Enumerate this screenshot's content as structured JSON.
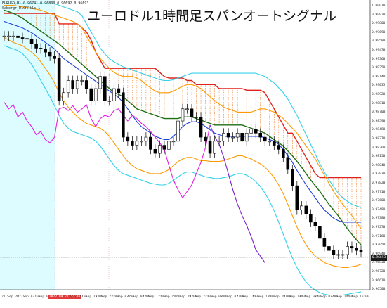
{
  "window": {
    "title": "ユーロドル1時間足スパンオートシグナル",
    "symbol_line": "EURUSD,H1  0.96741 0.96800 0.96692 0.96693",
    "indicator_line": "Sabergr_D1GRPtls 1"
  },
  "colors": {
    "background": "#ffffff",
    "cyan_zone": "#dcfcff",
    "candle_bull": "#ffffff",
    "candle_bear": "#000000",
    "span_red": "#e0201c",
    "span_green": "#1e6e14",
    "bb_blue": "#1f3fd6",
    "bb_orange": "#ff9900",
    "bb_cyan": "#33d0e8",
    "lagging_magenta": "#e020e0",
    "lagging_purple": "#7a1ec8",
    "cloud_hatch": "#e87a2a"
  },
  "price_axis": {
    "labels": [
      "1.00010",
      "0.99920",
      "0.99800",
      "0.99690",
      "0.99580",
      "0.99470",
      "0.99360",
      "0.99250",
      "0.99140",
      "0.99035",
      "0.98920",
      "0.98810",
      "0.98700",
      "0.98590",
      "0.98480",
      "0.98370",
      "0.98260",
      "0.98150",
      "0.98040",
      "0.97930",
      "0.97820",
      "0.97710",
      "0.97600",
      "0.97490",
      "0.97380",
      "0.97270",
      "0.97160",
      "0.97050",
      "0.96940",
      "0.96830",
      "0.96720",
      "0.96610",
      "0.96500"
    ],
    "current_price": "0.96693"
  },
  "time_axis": {
    "labels": [
      "21 Sep 2022",
      "21 Sep 03:00",
      "21 Sep 07:00",
      "2022.09.21 14:00",
      "21 Sep 15:00",
      "21 Sep 19:00",
      "21 Sep 23:00",
      "22 Sep 03:00",
      "22 Sep 07:00",
      "22 Sep 11:00",
      "22 Sep 15:00",
      "22 Sep 19:00",
      "22 Sep 23:00",
      "23 Sep 03:00",
      "23 Sep 07:00",
      "23 Sep 11:00",
      "23 Sep 15:00",
      "23 Sep 19:00",
      "23 Sep 23:00",
      "24 Sep 03:00",
      "24 Sep 07:00",
      "24 Sep 11:00",
      "24 Sep 15:00"
    ],
    "highlighted_label_index": 3
  },
  "chart_data": {
    "type": "line",
    "title": "ユーロドル1時間足スパンオートシグナル",
    "xlabel": "",
    "ylabel": "",
    "ylim": [
      0.965,
      1.0001
    ],
    "x_ticks": [
      "21 Sep 2022",
      "21 Sep 03:00",
      "21 Sep 07:00",
      "2022.09.21 14:00",
      "21 Sep 15:00",
      "21 Sep 19:00",
      "21 Sep 23:00",
      "22 Sep 03:00",
      "22 Sep 07:00",
      "22 Sep 11:00",
      "22 Sep 15:00",
      "22 Sep 19:00",
      "22 Sep 23:00",
      "23 Sep 03:00",
      "23 Sep 07:00",
      "23 Sep 11:00",
      "23 Sep 15:00",
      "23 Sep 19:00",
      "23 Sep 23:00",
      "24 Sep 03:00",
      "24 Sep 07:00",
      "24 Sep 11:00",
      "24 Sep 15:00"
    ],
    "candles_close": [
      0.996,
      0.996,
      0.996,
      0.9958,
      0.9957,
      0.9956,
      0.995,
      0.9945,
      0.9944,
      0.994,
      0.9935,
      0.9932,
      0.988,
      0.989,
      0.9905,
      0.9895,
      0.9905,
      0.9905,
      0.9895,
      0.988,
      0.9895,
      0.991,
      0.988,
      0.988,
      0.9895,
      0.989,
      0.9835,
      0.983,
      0.9825,
      0.983,
      0.983,
      0.9835,
      0.982,
      0.9815,
      0.9825,
      0.982,
      0.983,
      0.983,
      0.9855,
      0.987,
      0.987,
      0.986,
      0.986,
      0.9835,
      0.983,
      0.9815,
      0.983,
      0.983,
      0.984,
      0.9835,
      0.9835,
      0.984,
      0.983,
      0.984,
      0.9845,
      0.984,
      0.9835,
      0.983,
      0.983,
      0.9825,
      0.982,
      0.981,
      0.9795,
      0.9775,
      0.9745,
      0.975,
      0.974,
      0.973,
      0.9725,
      0.971,
      0.97,
      0.9695,
      0.969,
      0.969,
      0.969,
      0.97,
      0.9698,
      0.9695,
      0.9693
    ],
    "series": [
      {
        "name": "",
        "color": "#e0201c",
        "values": [
          0.9988,
          0.9988,
          0.9988,
          0.9988,
          0.9988,
          0.9988,
          0.9988,
          0.9988,
          0.9988,
          0.9988,
          0.9988,
          0.9988,
          0.9975,
          0.9975,
          0.9975,
          0.9975,
          0.9975,
          0.997,
          0.9965,
          0.9955,
          0.994,
          0.993,
          0.992,
          0.992,
          0.992,
          0.992,
          0.992,
          0.992,
          0.992,
          0.992,
          0.992,
          0.992,
          0.992,
          0.992,
          0.9915,
          0.991,
          0.9908,
          0.9908,
          0.9908,
          0.9908,
          0.9905,
          0.9905,
          0.99,
          0.99,
          0.99,
          0.99,
          0.99,
          0.9895,
          0.9895,
          0.9895,
          0.9895,
          0.9895,
          0.9895,
          0.9893,
          0.9893,
          0.9893,
          0.9893,
          0.989,
          0.988,
          0.987,
          0.986,
          0.985,
          0.984,
          0.984,
          0.983,
          0.982,
          0.981,
          0.98,
          0.979,
          0.9785,
          0.9785,
          0.9785,
          0.9785,
          0.9785,
          0.9785,
          0.9785,
          0.9785,
          0.9785,
          0.9785
        ]
      },
      {
        "name": "",
        "color": "#1e6e14",
        "values": [
          0.9992,
          0.999,
          0.9988,
          0.9985,
          0.9982,
          0.9978,
          0.9974,
          0.997,
          0.9966,
          0.9962,
          0.9958,
          0.9954,
          0.995,
          0.9945,
          0.994,
          0.9935,
          0.993,
          0.9925,
          0.992,
          0.9915,
          0.991,
          0.9905,
          0.99,
          0.9895,
          0.989,
          0.9888,
          0.9885,
          0.988,
          0.9875,
          0.987,
          0.9868,
          0.9866,
          0.9864,
          0.9862,
          0.986,
          0.9858,
          0.9858,
          0.9858,
          0.9858,
          0.986,
          0.986,
          0.986,
          0.9858,
          0.9856,
          0.9854,
          0.9852,
          0.985,
          0.985,
          0.985,
          0.985,
          0.985,
          0.985,
          0.985,
          0.9848,
          0.9846,
          0.9844,
          0.9842,
          0.984,
          0.9836,
          0.9832,
          0.9828,
          0.9824,
          0.9818,
          0.9812,
          0.9805,
          0.9798,
          0.979,
          0.9782,
          0.9775,
          0.9768,
          0.976,
          0.9752,
          0.9745,
          0.9738,
          0.973,
          0.9722,
          0.9715,
          0.9708,
          0.9702
        ]
      },
      {
        "name": "",
        "color": "#1f3fd6",
        "values": [
          0.9978,
          0.9976,
          0.9974,
          0.9972,
          0.997,
          0.9967,
          0.9964,
          0.996,
          0.9956,
          0.9952,
          0.9948,
          0.9944,
          0.9938,
          0.9932,
          0.9928,
          0.9924,
          0.992,
          0.9916,
          0.9912,
          0.9908,
          0.9904,
          0.99,
          0.9896,
          0.9892,
          0.9888,
          0.9884,
          0.9878,
          0.987,
          0.9862,
          0.9854,
          0.9848,
          0.9844,
          0.984,
          0.9836,
          0.9834,
          0.9832,
          0.9832,
          0.9836,
          0.9842,
          0.9848,
          0.9852,
          0.9854,
          0.9854,
          0.9852,
          0.9848,
          0.9844,
          0.984,
          0.9838,
          0.9836,
          0.9836,
          0.9836,
          0.9836,
          0.9836,
          0.9836,
          0.9836,
          0.9836,
          0.9836,
          0.9834,
          0.9832,
          0.983,
          0.9826,
          0.982,
          0.9812,
          0.9804,
          0.9794,
          0.9785,
          0.9776,
          0.9768,
          0.976,
          0.9752,
          0.9745,
          0.974,
          0.9735,
          0.9732,
          0.973,
          0.973,
          0.973,
          0.973,
          0.973
        ]
      },
      {
        "name": "",
        "color": "#ff9900",
        "values": [
          0.9998,
          0.9998,
          0.9998,
          0.9997,
          0.9996,
          0.9995,
          0.9994,
          0.9993,
          0.9992,
          0.999,
          0.9988,
          0.9986,
          0.9984,
          0.9982,
          0.998,
          0.9978,
          0.9975,
          0.997,
          0.996,
          0.995,
          0.994,
          0.9932,
          0.9926,
          0.992,
          0.9915,
          0.9912,
          0.991,
          0.991,
          0.991,
          0.9908,
          0.9905,
          0.99,
          0.9896,
          0.9892,
          0.989,
          0.989,
          0.989,
          0.9892,
          0.9895,
          0.9898,
          0.99,
          0.99,
          0.9898,
          0.9895,
          0.989,
          0.9885,
          0.988,
          0.9876,
          0.9872,
          0.987,
          0.9868,
          0.9866,
          0.9866,
          0.9866,
          0.9866,
          0.9868,
          0.987,
          0.987,
          0.9868,
          0.9866,
          0.9862,
          0.9858,
          0.9852,
          0.9846,
          0.984,
          0.9832,
          0.9824,
          0.9816,
          0.9808,
          0.9798,
          0.9788,
          0.9778,
          0.9768,
          0.976,
          0.9752,
          0.9745,
          0.9738,
          0.973,
          0.9722
        ]
      },
      {
        "name": "",
        "color": "#ff9900",
        "values": [
          0.9958,
          0.9955,
          0.9952,
          0.995,
          0.9948,
          0.9944,
          0.994,
          0.9935,
          0.9928,
          0.992,
          0.9912,
          0.9902,
          0.989,
          0.988,
          0.9872,
          0.9866,
          0.986,
          0.9856,
          0.9852,
          0.985,
          0.9848,
          0.9846,
          0.9842,
          0.9836,
          0.9828,
          0.982,
          0.9812,
          0.9805,
          0.98,
          0.9796,
          0.9794,
          0.9792,
          0.979,
          0.979,
          0.979,
          0.9792,
          0.9795,
          0.98,
          0.9805,
          0.9808,
          0.981,
          0.981,
          0.9808,
          0.9806,
          0.9806,
          0.9805,
          0.9805,
          0.9805,
          0.9806,
          0.9808,
          0.981,
          0.9812,
          0.9812,
          0.981,
          0.9808,
          0.9805,
          0.9802,
          0.9798,
          0.9792,
          0.9785,
          0.9776,
          0.9765,
          0.9752,
          0.9738,
          0.9724,
          0.9712,
          0.9702,
          0.9694,
          0.9688,
          0.9684,
          0.968,
          0.9678,
          0.9676,
          0.9675,
          0.9674,
          0.9674,
          0.9675,
          0.9676,
          0.9678
        ]
      },
      {
        "name": "",
        "color": "#33d0e8",
        "values": [
          1.0,
          1.0,
          1.0,
          1.0,
          1.0,
          1.0,
          1.0,
          1.0,
          1.0,
          1.0,
          1.0,
          1.0,
          0.9998,
          0.9996,
          0.9994,
          0.9992,
          0.999,
          0.9985,
          0.9975,
          0.9965,
          0.9955,
          0.9945,
          0.9938,
          0.9932,
          0.9928,
          0.9925,
          0.9922,
          0.992,
          0.9918,
          0.9916,
          0.9914,
          0.9912,
          0.991,
          0.9908,
          0.9906,
          0.9905,
          0.9905,
          0.9906,
          0.9908,
          0.991,
          0.9912,
          0.9914,
          0.9914,
          0.9914,
          0.9914,
          0.9914,
          0.9914,
          0.9914,
          0.9914,
          0.9914,
          0.9914,
          0.9914,
          0.9914,
          0.9914,
          0.9914,
          0.9914,
          0.9912,
          0.991,
          0.9906,
          0.9902,
          0.9896,
          0.989,
          0.9882,
          0.9872,
          0.9862,
          0.985,
          0.9838,
          0.9826,
          0.9814,
          0.9802,
          0.9792,
          0.9782,
          0.9774,
          0.9766,
          0.976,
          0.9756,
          0.9752,
          0.975,
          0.9748
        ]
      },
      {
        "name": "",
        "color": "#33d0e8",
        "values": [
          0.9948,
          0.9946,
          0.9944,
          0.9942,
          0.9938,
          0.9932,
          0.9925,
          0.9915,
          0.9905,
          0.9895,
          0.9885,
          0.9874,
          0.9862,
          0.9852,
          0.9846,
          0.9842,
          0.984,
          0.9838,
          0.9836,
          0.9834,
          0.983,
          0.9824,
          0.9816,
          0.9808,
          0.98,
          0.9794,
          0.979,
          0.9788,
          0.9786,
          0.9784,
          0.9782,
          0.978,
          0.9778,
          0.9777,
          0.9776,
          0.9776,
          0.9778,
          0.9782,
          0.9786,
          0.979,
          0.9792,
          0.9792,
          0.979,
          0.9788,
          0.9786,
          0.9785,
          0.9784,
          0.9784,
          0.9785,
          0.9786,
          0.9788,
          0.979,
          0.979,
          0.9788,
          0.9785,
          0.978,
          0.9774,
          0.9766,
          0.9756,
          0.9744,
          0.973,
          0.9715,
          0.97,
          0.9686,
          0.9674,
          0.9664,
          0.9656,
          0.965,
          0.9646,
          0.9643,
          0.9641,
          0.964,
          0.964,
          0.964,
          0.964,
          0.9641,
          0.9642,
          0.9643,
          0.9644
        ]
      },
      {
        "name": "",
        "color": "#e020e0",
        "values": [
          0.9878,
          0.987,
          0.9875,
          0.986,
          0.9866,
          0.9855,
          0.9848,
          0.9838,
          0.9842,
          0.9832,
          0.9828,
          0.9835,
          0.987,
          0.9872,
          0.9868,
          0.9874,
          0.9866,
          0.987,
          0.9875,
          0.9858,
          0.9848,
          0.9858,
          0.9862,
          0.986,
          0.9868,
          0.987,
          0.9862,
          0.9855,
          0.9862,
          0.9858,
          0.9852,
          0.9848,
          0.9842,
          0.9835,
          0.9828,
          0.982,
          0.98,
          0.9782,
          0.977,
          0.976,
          0.9768,
          0.9776,
          0.979,
          0.9804,
          0.9822,
          0.985
        ]
      },
      {
        "name": "",
        "color": "#7a1ec8",
        "values": [
          null,
          null,
          null,
          null,
          null,
          null,
          null,
          null,
          null,
          null,
          null,
          null,
          null,
          null,
          null,
          null,
          null,
          null,
          null,
          null,
          null,
          null,
          null,
          null,
          null,
          null,
          null,
          null,
          null,
          null,
          null,
          null,
          null,
          null,
          null,
          null,
          null,
          null,
          null,
          null,
          null,
          null,
          null,
          null,
          null,
          0.985,
          0.9836,
          0.9826,
          0.981,
          0.979,
          0.977,
          0.9752,
          0.9738,
          0.9726,
          0.9712,
          0.9696,
          0.9688,
          0.968
        ]
      }
    ]
  }
}
